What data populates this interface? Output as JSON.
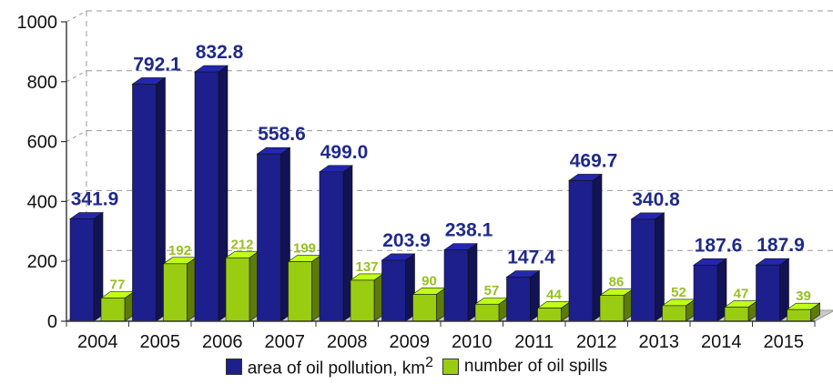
{
  "colors": {
    "series1": "#1c1f8c",
    "series2": "#9acd12",
    "label1": "#1f2a8a",
    "label2": "#98c020",
    "grid": "#999999",
    "floor": "#c9c9c9"
  },
  "chart_data": {
    "type": "bar",
    "categories": [
      "2004",
      "2005",
      "2006",
      "2007",
      "2008",
      "2009",
      "2010",
      "2011",
      "2012",
      "2013",
      "2014",
      "2015"
    ],
    "series": [
      {
        "name": "area of oil pollution, km2",
        "values": [
          341.9,
          792.1,
          832.8,
          558.6,
          499.0,
          203.9,
          238.1,
          147.4,
          469.7,
          340.8,
          187.6,
          187.9
        ],
        "labels": [
          "341.9",
          "792.1",
          "832.8",
          "558.6",
          "499.0",
          "203.9",
          "238.1",
          "147.4",
          "469.7",
          "340.8",
          "187.6",
          "187.9"
        ]
      },
      {
        "name": "number of oil spills",
        "values": [
          77,
          192,
          212,
          199,
          137,
          90,
          57,
          44,
          86,
          52,
          47,
          39
        ],
        "labels": [
          "77",
          "192",
          "212",
          "199",
          "137",
          "90",
          "57",
          "44",
          "86",
          "52",
          "47",
          "39"
        ]
      }
    ],
    "ylim": [
      0,
      1000
    ],
    "yticks": [
      "0",
      "200",
      "400",
      "600",
      "800",
      "1000"
    ],
    "grid": true,
    "legend_position": "bottom"
  },
  "legend": {
    "item1_text": "area of oil pollution, km",
    "item1_sup": "2",
    "item2_text": "number of oil spills"
  }
}
